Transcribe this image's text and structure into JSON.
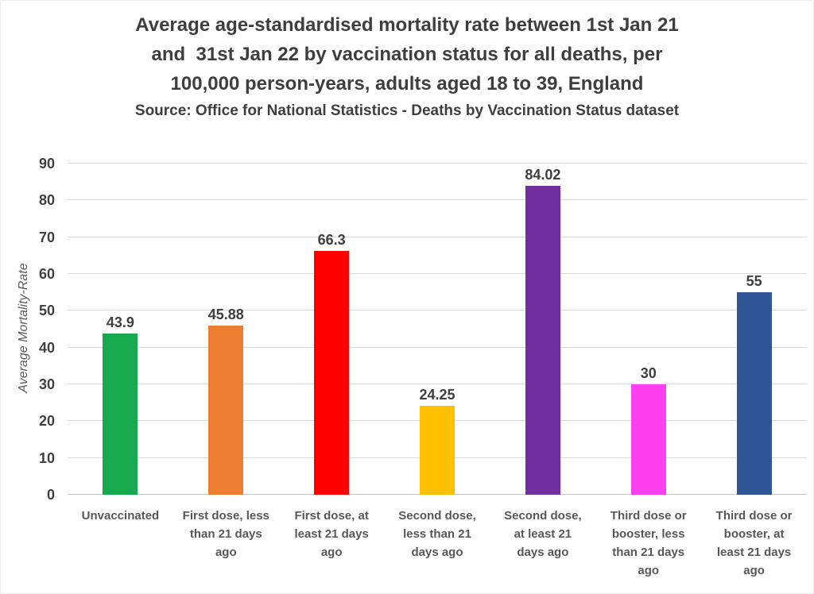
{
  "header": {
    "title": "Average age-standardised mortality rate between 1st Jan 21\nand  31st Jan 22 by vaccination status for all deaths, per\n100,000 person-years, adults aged 18 to 39, England",
    "subtitle": "Source: Office for National Statistics - Deaths by Vaccination Status dataset"
  },
  "chart_data": {
    "type": "bar",
    "title": "Average age-standardised mortality rate between 1st Jan 21 and 31st Jan 22 by vaccination status for all deaths, per 100,000 person-years, adults aged 18 to 39, England",
    "source": "Office for National Statistics - Deaths by Vaccination Status dataset",
    "xlabel": "",
    "ylabel": "Average Mortality-Rate",
    "ylim": [
      0,
      90
    ],
    "ytick_interval": 10,
    "grid": true,
    "legend": false,
    "categories": [
      "Unvaccinated",
      "First dose, less than 21 days ago",
      "First dose, at least 21 days ago",
      "Second dose, less than 21 days ago",
      "Second dose, at least 21 days ago",
      "Third dose or booster, less than 21 days ago",
      "Third dose or booster, at least 21 days ago"
    ],
    "tick_labels": [
      "Unvaccinated",
      "First dose, less\nthan 21 days\nago",
      "First dose, at\nleast 21 days\nago",
      "Second dose,\nless than 21\ndays ago",
      "Second dose,\nat least 21\ndays ago",
      "Third dose or\nbooster, less\nthan 21 days\nago",
      "Third dose or\nbooster, at\nleast 21 days\nago"
    ],
    "values": [
      43.9,
      45.88,
      66.3,
      24.25,
      84.02,
      30,
      55
    ],
    "value_labels": [
      "43.9",
      "45.88",
      "66.3",
      "24.25",
      "84.02",
      "30",
      "55"
    ],
    "bar_colors": [
      "#17A94E",
      "#ED7D31",
      "#FF0000",
      "#FFC000",
      "#7030A0",
      "#FF40F0",
      "#2F5597"
    ]
  }
}
